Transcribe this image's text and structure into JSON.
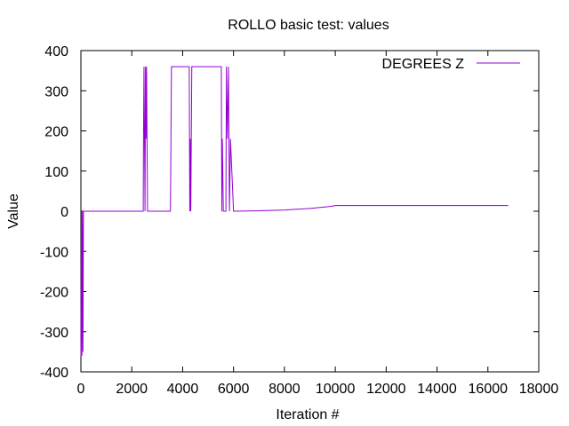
{
  "chart_data": {
    "type": "line",
    "title": "ROLLO  basic test: values",
    "xlabel": "Iteration #",
    "ylabel": "Value",
    "xlim": [
      0,
      18000
    ],
    "ylim": [
      -400,
      400
    ],
    "x_ticks": [
      0,
      2000,
      4000,
      6000,
      8000,
      10000,
      12000,
      14000,
      16000,
      18000
    ],
    "x_tick_labels": [
      "0",
      "2000",
      "4000",
      "6000",
      "8000",
      "10000",
      "12000",
      "14000",
      "16000",
      "18000"
    ],
    "y_ticks": [
      400,
      300,
      200,
      100,
      0,
      -100,
      -200,
      -300,
      -400
    ],
    "y_tick_labels": [
      "400",
      "300",
      "200",
      "100",
      "0",
      "-100",
      "-200",
      "-300",
      "-400"
    ],
    "grid": false,
    "legend_position": "top-right",
    "series": [
      {
        "name": "DEGREES Z",
        "color": "#9400d3",
        "x": [
          0,
          20,
          40,
          60,
          80,
          100,
          2450,
          2460,
          2480,
          2500,
          2520,
          2540,
          2560,
          2580,
          2600,
          2620,
          2640,
          3520,
          3540,
          3560,
          4260,
          4280,
          4300,
          4320,
          4340,
          4360,
          5520,
          5540,
          5560,
          5600,
          5700,
          5720,
          5760,
          5800,
          5840,
          5880,
          6000,
          7000,
          8000,
          9000,
          9800,
          10000,
          12000,
          14000,
          16000,
          16800
        ],
        "y": [
          -360,
          0,
          -360,
          0,
          -350,
          0,
          0,
          180,
          360,
          180,
          0,
          360,
          180,
          360,
          180,
          0,
          0,
          0,
          180,
          360,
          360,
          0,
          180,
          0,
          180,
          360,
          360,
          0,
          180,
          0,
          0,
          360,
          180,
          360,
          0,
          180,
          0,
          1,
          3,
          7,
          12,
          14,
          14,
          14,
          14,
          14
        ]
      }
    ]
  }
}
